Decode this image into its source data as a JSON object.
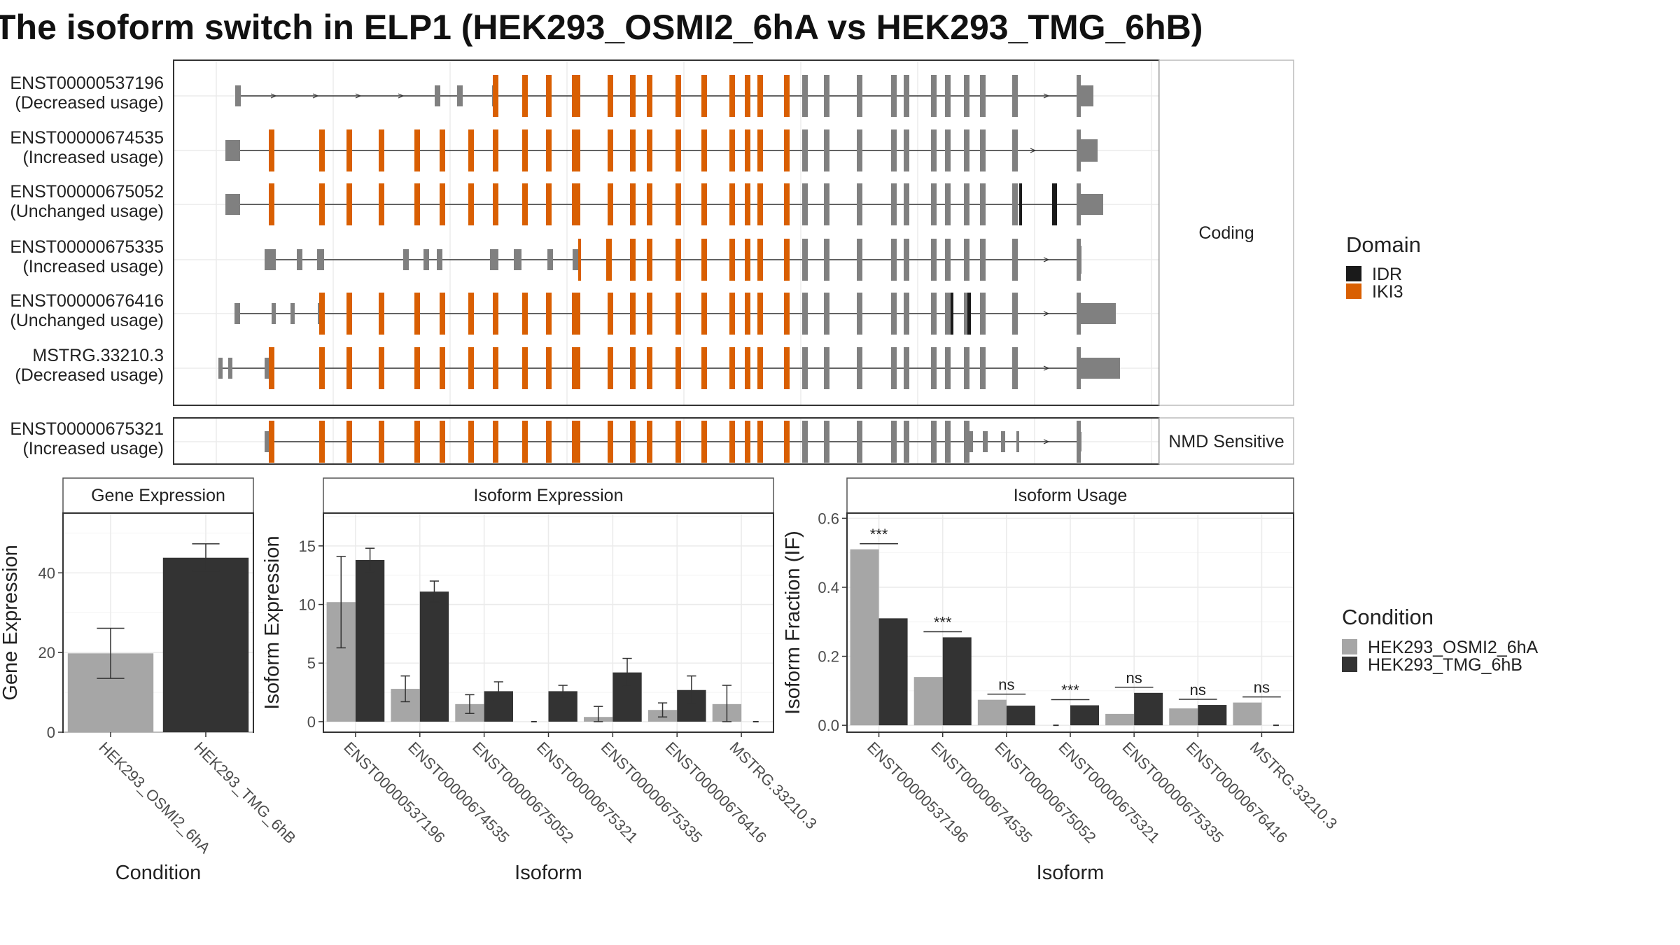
{
  "title": "The isoform switch in ELP1 (HEK293_OSMI2_6hA vs HEK293_TMG_6hB)",
  "colors": {
    "IDR": "#1a1a1a",
    "IKI3": "#d95f02",
    "noncoding_exon": "#808080",
    "HEK293_OSMI2_6hA": "#a6a6a6",
    "HEK293_TMG_6hB": "#333333"
  },
  "structure": {
    "coding_strip": "Coding",
    "nmd_strip": "NMD Sensitive",
    "domain_legend_title": "Domain",
    "domain_legend": [
      "IDR",
      "IKI3"
    ],
    "isoforms": [
      {
        "id": "ENST00000537196",
        "usage": "(Decreased usage)",
        "group": "Coding"
      },
      {
        "id": "ENST00000674535",
        "usage": "(Increased usage)",
        "group": "Coding"
      },
      {
        "id": "ENST00000675052",
        "usage": "(Unchanged usage)",
        "group": "Coding"
      },
      {
        "id": "ENST00000675335",
        "usage": "(Increased usage)",
        "group": "Coding"
      },
      {
        "id": "ENST00000676416",
        "usage": "(Unchanged usage)",
        "group": "Coding"
      },
      {
        "id": "MSTRG.33210.3",
        "usage": "(Decreased usage)",
        "group": "Coding"
      },
      {
        "id": "ENST00000675321",
        "usage": "(Increased usage)",
        "group": "NMD Sensitive"
      }
    ]
  },
  "chart_data": [
    {
      "type": "bar",
      "title": "Gene Expression",
      "xlabel": "Condition",
      "ylabel": "Gene Expression",
      "categories": [
        "HEK293_OSMI2_6hA",
        "HEK293_TMG_6hB"
      ],
      "values": [
        19.8,
        43.8
      ],
      "error": [
        [
          13.5,
          26.1
        ],
        [
          40.5,
          47.3
        ]
      ],
      "ylim": [
        0,
        55
      ],
      "yticks": [
        0,
        20,
        40
      ]
    },
    {
      "type": "bar",
      "title": "Isoform Expression",
      "xlabel": "Isoform",
      "ylabel": "Isoform Expression",
      "categories": [
        "ENST00000537196",
        "ENST00000674535",
        "ENST00000675052",
        "ENST00000675321",
        "ENST00000675335",
        "ENST00000676416",
        "MSTRG.33210.3"
      ],
      "series": [
        {
          "name": "HEK293_OSMI2_6hA",
          "values": [
            10.2,
            2.8,
            1.5,
            0.0,
            0.4,
            1.0,
            1.5
          ],
          "error": [
            [
              6.3,
              14.1
            ],
            [
              1.7,
              3.9
            ],
            [
              0.7,
              2.3
            ],
            [
              0.0,
              0.0
            ],
            [
              0.0,
              1.3
            ],
            [
              0.4,
              1.6
            ],
            [
              0.0,
              3.1
            ]
          ]
        },
        {
          "name": "HEK293_TMG_6hB",
          "values": [
            13.8,
            11.1,
            2.6,
            2.6,
            4.2,
            2.7,
            0.0
          ],
          "error": [
            [
              12.8,
              14.8
            ],
            [
              10.2,
              12.0
            ],
            [
              1.8,
              3.4
            ],
            [
              2.1,
              3.1
            ],
            [
              3.0,
              5.4
            ],
            [
              1.5,
              3.9
            ],
            [
              0.0,
              0.0
            ]
          ]
        }
      ],
      "ylim": [
        -0.9,
        17.8
      ],
      "yticks": [
        0,
        5,
        10,
        15
      ]
    },
    {
      "type": "bar",
      "title": "Isoform Usage",
      "xlabel": "Isoform",
      "ylabel": "Isoform Fraction (IF)",
      "categories": [
        "ENST00000537196",
        "ENST00000674535",
        "ENST00000675052",
        "ENST00000675321",
        "ENST00000675335",
        "ENST00000676416",
        "MSTRG.33210.3"
      ],
      "series": [
        {
          "name": "HEK293_OSMI2_6hA",
          "values": [
            0.51,
            0.14,
            0.074,
            0.0,
            0.033,
            0.049,
            0.066
          ]
        },
        {
          "name": "HEK293_TMG_6hB",
          "values": [
            0.31,
            0.255,
            0.057,
            0.058,
            0.094,
            0.059,
            0.0
          ]
        }
      ],
      "significance": [
        "***",
        "***",
        "ns",
        "***",
        "ns",
        "ns",
        "ns"
      ],
      "ylim": [
        -0.02,
        0.615
      ],
      "yticks": [
        0.0,
        0.2,
        0.4,
        0.6
      ]
    }
  ],
  "legend": {
    "title": "Condition",
    "entries": [
      "HEK293_OSMI2_6hA",
      "HEK293_TMG_6hB"
    ]
  }
}
